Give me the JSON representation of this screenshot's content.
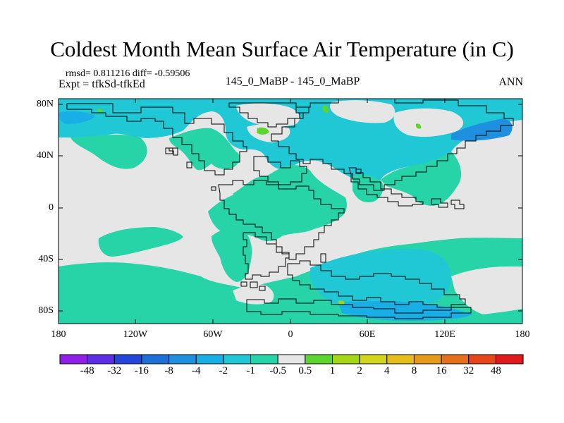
{
  "title": "Coldest Month Mean Surface Air Temperature (in C)",
  "stats": {
    "rmsd_label": "rmsd=",
    "rmsd": "0.811216",
    "diff_label": "diff=",
    "diff": "-0.59506"
  },
  "expt": "Expt = tfkSd-tfkEd",
  "center_label": "145_0_MaBP - 145_0_MaBP",
  "season": "ANN",
  "lat_labels": [
    "80N",
    "40N",
    "0",
    "40S",
    "80S"
  ],
  "lon_labels": [
    "180",
    "120W",
    "60W",
    "0",
    "60E",
    "120E",
    "180"
  ],
  "colorbar": {
    "labels": [
      "-48",
      "-32",
      "-16",
      "-8",
      "-4",
      "-2",
      "-1",
      "-0.5",
      "0.5",
      "1",
      "2",
      "4",
      "8",
      "16",
      "32",
      "48"
    ],
    "colors": [
      "#8f1fe6",
      "#5c2ee6",
      "#2445d9",
      "#1f6fd9",
      "#1f8fe0",
      "#18aee6",
      "#20c8d6",
      "#26d4a8",
      "#e6e6e6",
      "#5cd62e",
      "#a3d615",
      "#d2d61a",
      "#e6be1a",
      "#e69a1a",
      "#e6701a",
      "#e6461a",
      "#e01a1a"
    ]
  },
  "map_colors": {
    "neutral": "#e6e6e6",
    "cyan": "#20c8d6",
    "teal": "#26d4a8",
    "light_blue": "#18aee6",
    "blue": "#1f8fe0",
    "green": "#5cd62e"
  }
}
